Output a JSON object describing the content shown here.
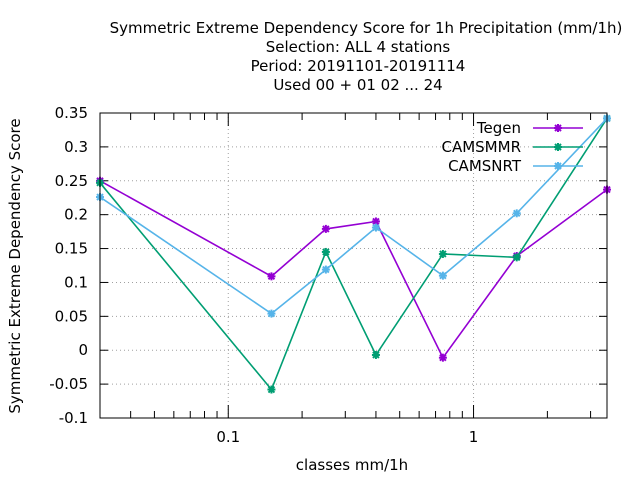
{
  "chart_data": {
    "type": "line",
    "title_lines": [
      "Symmetric Extreme Dependency Score  for 1h Precipitation (mm/1h)",
      "Selection: ALL      4 stations",
      "Period: 20191101-20191114",
      "Used  00 + 01 02 ... 24"
    ],
    "xlabel": "classes mm/1h",
    "ylabel": "Symmetric Extreme Dependency Score",
    "x_scale": "log",
    "xlim": [
      0.03,
      3.5
    ],
    "ylim": [
      -0.1,
      0.35
    ],
    "x_ticks": [
      {
        "value": 0.1,
        "label": "0.1"
      },
      {
        "value": 1,
        "label": "1"
      }
    ],
    "x_minor_ticks": [
      0.04,
      0.05,
      0.06,
      0.07,
      0.08,
      0.09,
      0.2,
      0.3,
      0.4,
      0.5,
      0.6,
      0.7,
      0.8,
      0.9,
      2,
      3
    ],
    "y_ticks": [
      {
        "value": -0.1,
        "label": "-0.1"
      },
      {
        "value": -0.05,
        "label": "-0.05"
      },
      {
        "value": 0,
        "label": "0"
      },
      {
        "value": 0.05,
        "label": "0.05"
      },
      {
        "value": 0.1,
        "label": "0.1"
      },
      {
        "value": 0.15,
        "label": "0.15"
      },
      {
        "value": 0.2,
        "label": "0.2"
      },
      {
        "value": 0.25,
        "label": "0.25"
      },
      {
        "value": 0.3,
        "label": "0.3"
      },
      {
        "value": 0.35,
        "label": "0.35"
      }
    ],
    "grid": true,
    "legend_position": "top-right",
    "x": [
      0.03,
      0.15,
      0.25,
      0.4,
      0.75,
      1.5,
      3.5
    ],
    "series": [
      {
        "name": "Tegen",
        "color": "#9400d3",
        "values": [
          0.25,
          0.109,
          0.179,
          0.19,
          -0.011,
          0.139,
          0.237
        ]
      },
      {
        "name": "CAMSMMR",
        "color": "#009e73",
        "values": [
          0.247,
          -0.058,
          0.145,
          -0.007,
          0.142,
          0.137,
          0.342
        ]
      },
      {
        "name": "CAMSNRT",
        "color": "#56b4e9",
        "values": [
          0.226,
          0.054,
          0.119,
          0.181,
          0.11,
          0.202,
          0.342
        ]
      }
    ]
  }
}
